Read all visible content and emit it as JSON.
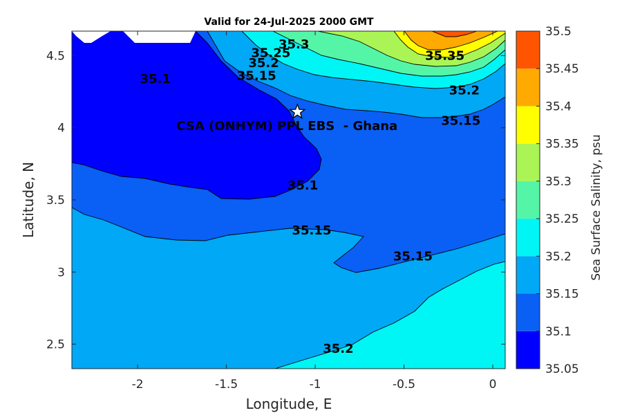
{
  "chart_data": {
    "type": "contour",
    "title": "Valid for 24-Jul-2025 2000 GMT",
    "xlabel": "Longitude, E",
    "ylabel": "Latitude, N",
    "xlim": [
      -2.37,
      0.07
    ],
    "ylim": [
      2.33,
      4.67
    ],
    "x_ticks": [
      {
        "value": -2,
        "label": "-2"
      },
      {
        "value": -1.5,
        "label": "-1.5"
      },
      {
        "value": -1,
        "label": "-1"
      },
      {
        "value": -0.5,
        "label": "-0.5"
      },
      {
        "value": 0,
        "label": "0"
      }
    ],
    "y_ticks": [
      {
        "value": 2.5,
        "label": "2.5"
      },
      {
        "value": 3,
        "label": "3"
      },
      {
        "value": 3.5,
        "label": "3.5"
      },
      {
        "value": 4,
        "label": "4"
      },
      {
        "value": 4.5,
        "label": "4.5"
      }
    ],
    "colorbar": {
      "label": "Sea Surface Salinity, psu",
      "levels": [
        35.05,
        35.1,
        35.15,
        35.2,
        35.25,
        35.3,
        35.35,
        35.4,
        35.45,
        35.5
      ],
      "tick_labels": [
        "35.05",
        "35.1",
        "35.15",
        "35.2",
        "35.25",
        "35.3",
        "35.35",
        "35.4",
        "35.45",
        "35.5"
      ],
      "colors": [
        "#0000ff",
        "#0a5ff5",
        "#00a8f5",
        "#00f5f5",
        "#55f5a8",
        "#aaf555",
        "#ffff00",
        "#ffaa00",
        "#ff5500"
      ]
    },
    "contour_labels": [
      {
        "text": "35.3",
        "lon": -1.12,
        "lat": 4.58
      },
      {
        "text": "35.25",
        "lon": -1.25,
        "lat": 4.52
      },
      {
        "text": "35.2",
        "lon": -1.29,
        "lat": 4.45
      },
      {
        "text": "35.15",
        "lon": -1.33,
        "lat": 4.36
      },
      {
        "text": "35.1",
        "lon": -1.9,
        "lat": 4.34
      },
      {
        "text": "35.35",
        "lon": -0.27,
        "lat": 4.5
      },
      {
        "text": "35.2",
        "lon": -0.16,
        "lat": 4.26
      },
      {
        "text": "35.15",
        "lon": -0.18,
        "lat": 4.05
      },
      {
        "text": "35.1",
        "lon": -1.07,
        "lat": 3.6
      },
      {
        "text": "35.15",
        "lon": -1.02,
        "lat": 3.29
      },
      {
        "text": "35.15",
        "lon": -0.45,
        "lat": 3.11
      },
      {
        "text": "35.2",
        "lon": -0.87,
        "lat": 2.47
      }
    ],
    "station": {
      "label": "CSA (ONHYM) PPL EBS  - Ghana",
      "lon": -1.1,
      "lat": 4.11
    }
  }
}
